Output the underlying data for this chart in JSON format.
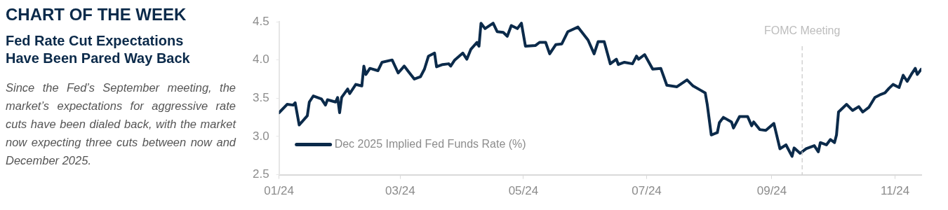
{
  "chart_data": {
    "type": "line",
    "title": "CHART OF THE WEEK",
    "subtitle": "Fed Rate Cut Expectations Have Been Pared Way Back",
    "annotations": [
      "Since the Fed’s September meeting, the market’s expectations for aggressive rate cuts have been dialed back, with the market now expecting three cuts between now and December 2025."
    ],
    "x": [
      "2024-01-01",
      "2024-01-05",
      "2024-01-08",
      "2024-01-09",
      "2024-01-11",
      "2024-01-15",
      "2024-01-16",
      "2024-01-18",
      "2024-01-22",
      "2024-01-24",
      "2024-01-25",
      "2024-01-29",
      "2024-01-30",
      "2024-01-31",
      "2024-02-01",
      "2024-02-04",
      "2024-02-05",
      "2024-02-08",
      "2024-02-11",
      "2024-02-12",
      "2024-02-13",
      "2024-02-15",
      "2024-02-19",
      "2024-02-21",
      "2024-02-26",
      "2024-02-29",
      "2024-03-03",
      "2024-03-05",
      "2024-03-08",
      "2024-03-11",
      "2024-03-13",
      "2024-03-15",
      "2024-03-18",
      "2024-03-19",
      "2024-03-22",
      "2024-03-25",
      "2024-03-26",
      "2024-03-28",
      "2024-04-01",
      "2024-04-03",
      "2024-04-05",
      "2024-04-08",
      "2024-04-09",
      "2024-04-10",
      "2024-04-12",
      "2024-04-16",
      "2024-04-18",
      "2024-04-21",
      "2024-04-23",
      "2024-04-25",
      "2024-04-28",
      "2024-04-30",
      "2024-05-02",
      "2024-05-07",
      "2024-05-09",
      "2024-05-12",
      "2024-05-14",
      "2024-05-17",
      "2024-05-20",
      "2024-05-23",
      "2024-05-28",
      "2024-06-02",
      "2024-06-05",
      "2024-06-07",
      "2024-06-10",
      "2024-06-13",
      "2024-06-16",
      "2024-06-17",
      "2024-06-20",
      "2024-06-24",
      "2024-06-26",
      "2024-06-27",
      "2024-06-30",
      "2024-07-04",
      "2024-07-08",
      "2024-07-11",
      "2024-07-16",
      "2024-07-21",
      "2024-07-24",
      "2024-07-28",
      "2024-07-30",
      "2024-07-31",
      "2024-08-02",
      "2024-08-05",
      "2024-08-06",
      "2024-08-08",
      "2024-08-12",
      "2024-08-13",
      "2024-08-16",
      "2024-08-20",
      "2024-08-22",
      "2024-08-23",
      "2024-08-26",
      "2024-08-29",
      "2024-09-02",
      "2024-09-05",
      "2024-09-08",
      "2024-09-11",
      "2024-09-12",
      "2024-09-15",
      "2024-09-18",
      "2024-09-22",
      "2024-09-24",
      "2024-09-25",
      "2024-09-28",
      "2024-09-30",
      "2024-10-02",
      "2024-10-03",
      "2024-10-04",
      "2024-10-08",
      "2024-10-11",
      "2024-10-14",
      "2024-10-16",
      "2024-10-19",
      "2024-10-22",
      "2024-10-25",
      "2024-10-27",
      "2024-10-29",
      "2024-10-31",
      "2024-11-03",
      "2024-11-05",
      "2024-11-07",
      "2024-11-09",
      "2024-11-11",
      "2024-11-12",
      "2024-11-14"
    ],
    "series": [
      {
        "name": "Dec 2025 Implied Fed Funds Rate (%)",
        "color": "#0b2a4a",
        "values": [
          3.31,
          3.42,
          3.41,
          3.44,
          3.15,
          3.27,
          3.45,
          3.53,
          3.49,
          3.41,
          3.48,
          3.45,
          3.51,
          3.31,
          3.51,
          3.62,
          3.56,
          3.68,
          3.66,
          3.92,
          3.81,
          3.89,
          3.86,
          3.97,
          4.0,
          3.83,
          3.92,
          3.85,
          3.75,
          3.78,
          3.88,
          4.05,
          4.09,
          3.91,
          3.94,
          3.95,
          3.92,
          4.0,
          4.09,
          4.01,
          4.14,
          4.23,
          4.18,
          4.48,
          4.41,
          4.48,
          4.37,
          4.36,
          4.31,
          4.45,
          4.41,
          4.48,
          4.18,
          4.19,
          4.23,
          4.23,
          4.08,
          4.2,
          4.21,
          4.37,
          4.43,
          4.26,
          4.08,
          4.24,
          4.24,
          3.95,
          4.01,
          3.94,
          3.97,
          3.95,
          4.05,
          4.01,
          4.07,
          3.88,
          3.89,
          3.67,
          3.65,
          3.74,
          3.66,
          3.6,
          3.57,
          3.42,
          3.02,
          3.05,
          3.18,
          3.25,
          3.19,
          3.11,
          3.26,
          3.26,
          3.14,
          3.19,
          3.09,
          3.08,
          3.17,
          2.84,
          2.89,
          2.74,
          2.85,
          2.78,
          2.84,
          2.88,
          2.8,
          2.92,
          2.89,
          2.96,
          2.92,
          3.02,
          3.32,
          3.42,
          3.34,
          3.39,
          3.32,
          3.38,
          3.51,
          3.55,
          3.57,
          3.63,
          3.68,
          3.64,
          3.8,
          3.72,
          3.81,
          3.89,
          3.81,
          3.88
        ]
      }
    ],
    "xlim": [
      "2024-01-01",
      "2024-11-14"
    ],
    "xticks": [
      {
        "value": "2024-01-01",
        "label": "01/24"
      },
      {
        "value": "2024-03-01",
        "label": "03/24"
      },
      {
        "value": "2024-05-01",
        "label": "05/24"
      },
      {
        "value": "2024-07-01",
        "label": "07/24"
      },
      {
        "value": "2024-09-01",
        "label": "09/24"
      },
      {
        "value": "2024-11-01",
        "label": "11/24"
      }
    ],
    "ylim": [
      2.5,
      4.5
    ],
    "yticks": [
      2.5,
      {
        "value": 3,
        "label": "3.0"
      },
      3.5,
      {
        "value": 4,
        "label": "4.0"
      },
      4.5
    ],
    "ref_lines": [
      {
        "axis": "x",
        "value": "2024-09-16",
        "label": "FOMC Meeting",
        "color": "#c8c8c8",
        "line_style": "dashed"
      }
    ],
    "grid": false,
    "legend": "bottom left",
    "marker": "none",
    "line_style": "solid"
  }
}
